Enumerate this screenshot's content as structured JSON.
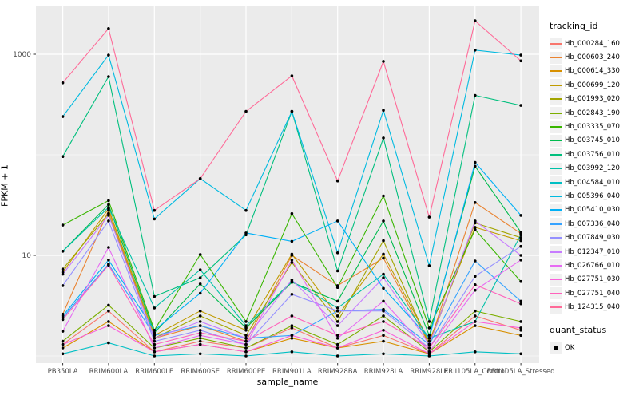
{
  "figure": {
    "background": "#ffffff",
    "panel_background": "#ebebeb",
    "gridline_color": "#ffffff",
    "tick_color": "#333333",
    "tick_label_color": "#4d4d4d",
    "marker_color": "#000000"
  },
  "chart_data": {
    "type": "line",
    "title": "",
    "xlabel": "sample_name",
    "ylabel": "FPKM + 1",
    "y_scale": "log10",
    "ylim": [
      0.85,
      2900
    ],
    "grid": true,
    "legend_position": "right",
    "y_ticks": [
      {
        "label": "10",
        "value": 10
      },
      {
        "label": "1000",
        "value": 1000
      }
    ],
    "y_minor_breaks": [
      1,
      100
    ],
    "categories": [
      "PB350LA",
      "RRIM600LA",
      "RRIM600LE",
      "RRIM600SE",
      "RRIM600PE",
      "RRIM901LA",
      "RRIM928BA",
      "RRIM928LA",
      "RRIM928LE",
      "RRII105LA_Control",
      "RRII105LA_Stressed"
    ],
    "series": [
      {
        "name": "Hb_000284_160",
        "color": "#F8766D",
        "values": [
          1.3,
          2.8,
          1.1,
          1.4,
          1.2,
          1.9,
          1.2,
          1.6,
          1.05,
          2.5,
          1.8
        ]
      },
      {
        "name": "Hb_000603_240",
        "color": "#EA8331",
        "values": [
          2.6,
          28,
          1.5,
          2.0,
          1.4,
          10,
          5,
          9.4,
          1.3,
          33.5,
          16.5
        ]
      },
      {
        "name": "Hb_000614_330",
        "color": "#D89000",
        "values": [
          1.2,
          2.2,
          1.1,
          1.3,
          1.1,
          1.5,
          1.2,
          1.4,
          1.05,
          2.0,
          1.6
        ]
      },
      {
        "name": "Hb_000699_120",
        "color": "#C09B00",
        "values": [
          6.8,
          29,
          1.6,
          2.8,
          1.8,
          10.3,
          2.5,
          10.3,
          1.4,
          19,
          14
        ]
      },
      {
        "name": "Hb_001993_020",
        "color": "#A3A500",
        "values": [
          7.3,
          26,
          1.5,
          2.5,
          1.6,
          8.5,
          2.2,
          14,
          1.3,
          21,
          15
        ]
      },
      {
        "name": "Hb_002843_190",
        "color": "#7CAE00",
        "values": [
          1.4,
          3.2,
          1.2,
          1.5,
          1.2,
          2.0,
          1.3,
          2.5,
          1.1,
          2.8,
          2.2
        ]
      },
      {
        "name": "Hb_003335_070",
        "color": "#39B600",
        "values": [
          20,
          35,
          1.8,
          10.2,
          2.2,
          26,
          4.8,
          39,
          1.9,
          18,
          5.5
        ]
      },
      {
        "name": "Hb_003745_010",
        "color": "#00BB4E",
        "values": [
          11,
          32,
          1.7,
          5.2,
          1.9,
          5.4,
          3.5,
          22,
          1.6,
          77,
          17
        ]
      },
      {
        "name": "Hb_003756_010",
        "color": "#00BF7D",
        "values": [
          96,
          600,
          3.9,
          6.0,
          16,
          270,
          7,
          147,
          2.2,
          390,
          310
        ]
      },
      {
        "name": "Hb_003992_120",
        "color": "#00C1A7",
        "values": [
          11,
          30,
          3.0,
          7.2,
          2.0,
          5.5,
          3.0,
          6.5,
          1.5,
          2.2,
          16
        ]
      },
      {
        "name": "Hb_004584_010",
        "color": "#00BFC4",
        "values": [
          1.05,
          1.35,
          1.0,
          1.05,
          1.0,
          1.1,
          1.0,
          1.05,
          1.0,
          1.1,
          1.05
        ]
      },
      {
        "name": "Hb_005396_040",
        "color": "#00BAE0",
        "values": [
          240,
          980,
          23,
          58,
          28,
          270,
          10.6,
          277,
          7.9,
          1100,
          980
        ]
      },
      {
        "name": "Hb_005410_030",
        "color": "#00B0F6",
        "values": [
          2.5,
          9,
          1.8,
          4.2,
          16.7,
          13.8,
          22,
          4.7,
          1.5,
          84,
          25
        ]
      },
      {
        "name": "Hb_007336_040",
        "color": "#35A2FF",
        "values": [
          2.4,
          8.2,
          1.6,
          2.0,
          1.5,
          1.6,
          2.8,
          2.9,
          1.3,
          8.8,
          3.5
        ]
      },
      {
        "name": "Hb_007849_030",
        "color": "#9590FF",
        "values": [
          5.0,
          22,
          1.4,
          1.8,
          1.3,
          4.1,
          2.8,
          2.8,
          1.2,
          6.2,
          12.3
        ]
      },
      {
        "name": "Hb_012347_010",
        "color": "#C77CFF",
        "values": [
          6.5,
          25,
          1.5,
          2.2,
          1.5,
          5.7,
          2.0,
          6.0,
          1.3,
          22,
          10
        ]
      },
      {
        "name": "Hb_026766_010",
        "color": "#E76BF3",
        "values": [
          1.76,
          12,
          1.2,
          1.6,
          1.3,
          9,
          1.5,
          3.5,
          1.1,
          4.5,
          9
        ]
      },
      {
        "name": "Hb_027751_030",
        "color": "#FA62DB",
        "values": [
          1.3,
          2.0,
          1.1,
          1.3,
          1.1,
          1.6,
          1.2,
          1.8,
          1.05,
          2.2,
          1.9
        ]
      },
      {
        "name": "Hb_027751_040",
        "color": "#FF62BC",
        "values": [
          2.3,
          8.0,
          1.3,
          1.7,
          1.4,
          2.5,
          1.6,
          2.2,
          1.2,
          5.1,
          3.3
        ]
      },
      {
        "name": "Hb_124315_040",
        "color": "#FF6A98",
        "values": [
          520,
          1800,
          28,
          58,
          270,
          610,
          55,
          850,
          24,
          2150,
          860
        ]
      }
    ],
    "legend": {
      "title": "tracking_id"
    },
    "quant_status": {
      "title": "quant_status",
      "items": [
        {
          "label": "OK",
          "marker": "black-square"
        }
      ]
    }
  }
}
